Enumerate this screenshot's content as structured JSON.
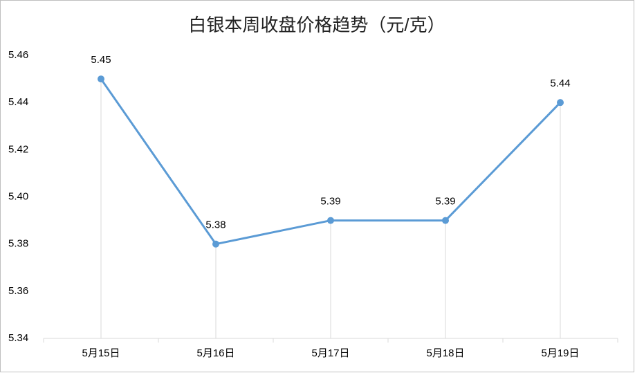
{
  "chart_data": {
    "type": "line",
    "title": "白银本周收盘价格趋势（元/克）",
    "categories": [
      "5月15日",
      "5月16日",
      "5月17日",
      "5月18日",
      "5月19日"
    ],
    "values": [
      5.45,
      5.38,
      5.39,
      5.39,
      5.44
    ],
    "color": "#5b9bd5",
    "ylim": [
      5.34,
      5.46
    ],
    "yticks": [
      5.34,
      5.36,
      5.38,
      {
        "value": 5.4,
        "label": "5.40"
      },
      5.42,
      5.44,
      5.46
    ],
    "data_labels": true,
    "drop_lines": true
  }
}
